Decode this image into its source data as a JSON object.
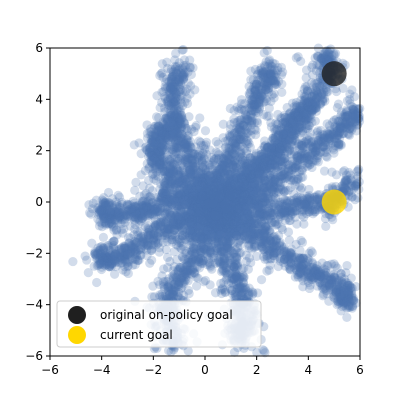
{
  "chart_data": {
    "type": "scatter",
    "title": "",
    "xlabel": "",
    "ylabel": "",
    "xlim": [
      -6,
      6
    ],
    "ylim": [
      -6,
      6
    ],
    "xticks": [
      -6,
      -4,
      -2,
      0,
      2,
      4,
      6
    ],
    "yticks": [
      -6,
      -4,
      -2,
      0,
      2,
      4,
      6
    ],
    "xtick_labels": [
      "−6",
      "−4",
      "−2",
      "0",
      "2",
      "4",
      "6"
    ],
    "ytick_labels": [
      "−6",
      "−4",
      "−2",
      "0",
      "2",
      "4",
      "6"
    ],
    "grid": false,
    "legend_position": "lower-left",
    "series": [
      {
        "color": "#4c72b0",
        "alpha": 0.25,
        "marker": "circle",
        "description": "trajectory points",
        "values": [],
        "seed": 7,
        "points_per_branch": 36
      },
      {
        "name": "original on-policy goal",
        "color": "#1f1f1f",
        "marker": "circle",
        "values": [
          [
            5.0,
            5.0
          ]
        ]
      },
      {
        "name": "current goal",
        "color": "#ffd700",
        "marker": "circle",
        "values": [
          [
            5.0,
            0.0
          ]
        ]
      }
    ],
    "trajectory_branches": [
      [
        [
          0.4,
          -0.2
        ],
        [
          -0.5,
          1.5
        ],
        [
          -1.1,
          3.0
        ],
        [
          -1.2,
          4.3
        ],
        [
          -0.9,
          5.3
        ]
      ],
      [
        [
          0.4,
          -0.2
        ],
        [
          0.9,
          1.8
        ],
        [
          1.6,
          3.2
        ],
        [
          2.2,
          4.5
        ],
        [
          2.6,
          5.2
        ]
      ],
      [
        [
          0.4,
          -0.2
        ],
        [
          1.8,
          0.8
        ],
        [
          2.8,
          2.2
        ],
        [
          3.8,
          3.4
        ],
        [
          4.8,
          5.0
        ],
        [
          4.7,
          5.8
        ]
      ],
      [
        [
          0.4,
          -0.2
        ],
        [
          2.2,
          0.3
        ],
        [
          3.4,
          1.4
        ],
        [
          4.4,
          2.2
        ],
        [
          5.4,
          3.0
        ],
        [
          6.0,
          3.8
        ]
      ],
      [
        [
          0.4,
          -0.2
        ],
        [
          2.5,
          -0.4
        ],
        [
          3.8,
          -0.1
        ],
        [
          5.0,
          0.0
        ],
        [
          5.8,
          0.9
        ]
      ],
      [
        [
          0.4,
          -0.2
        ],
        [
          2.0,
          -1.3
        ],
        [
          3.2,
          -2.1
        ],
        [
          4.2,
          -2.8
        ],
        [
          5.2,
          -3.3
        ],
        [
          5.6,
          -4.0
        ]
      ],
      [
        [
          0.4,
          -0.2
        ],
        [
          0.8,
          -2.0
        ],
        [
          1.3,
          -3.4
        ],
        [
          1.6,
          -4.6
        ],
        [
          1.2,
          -5.4
        ]
      ],
      [
        [
          0.4,
          -0.2
        ],
        [
          -0.4,
          -2.1
        ],
        [
          -1.2,
          -3.4
        ],
        [
          -1.6,
          -4.4
        ],
        [
          -1.0,
          -5.6
        ]
      ],
      [
        [
          0.4,
          -0.2
        ],
        [
          -1.6,
          -1.0
        ],
        [
          -2.6,
          -1.8
        ],
        [
          -3.6,
          -2.2
        ],
        [
          -4.1,
          -2.1
        ]
      ],
      [
        [
          0.4,
          -0.2
        ],
        [
          -1.5,
          0.1
        ],
        [
          -2.6,
          -0.4
        ],
        [
          -3.6,
          -0.6
        ],
        [
          -4.0,
          -0.2
        ]
      ],
      [
        [
          0.4,
          -0.2
        ],
        [
          -1.2,
          1.0
        ],
        [
          -2.0,
          1.8
        ],
        [
          -1.8,
          2.6
        ],
        [
          -1.2,
          2.9
        ]
      ],
      [
        [
          0.4,
          -0.2
        ],
        [
          1.8,
          1.2
        ],
        [
          2.8,
          1.9
        ],
        [
          3.4,
          3.3
        ],
        [
          4.3,
          4.0
        ]
      ]
    ],
    "scattered_points": [
      [
        4.1,
        -2.0
      ],
      [
        3.6,
        -2.8
      ],
      [
        5.4,
        -3.9
      ],
      [
        5.5,
        -4.0
      ],
      [
        4.7,
        5.8
      ],
      [
        3.6,
        5.6
      ],
      [
        -1.9,
        -5.7
      ],
      [
        2.3,
        -5.8
      ]
    ]
  },
  "legend": {
    "items": [
      {
        "label": "original on-policy goal",
        "color": "#1f1f1f"
      },
      {
        "label": "current goal",
        "color": "#ffd700"
      }
    ]
  }
}
